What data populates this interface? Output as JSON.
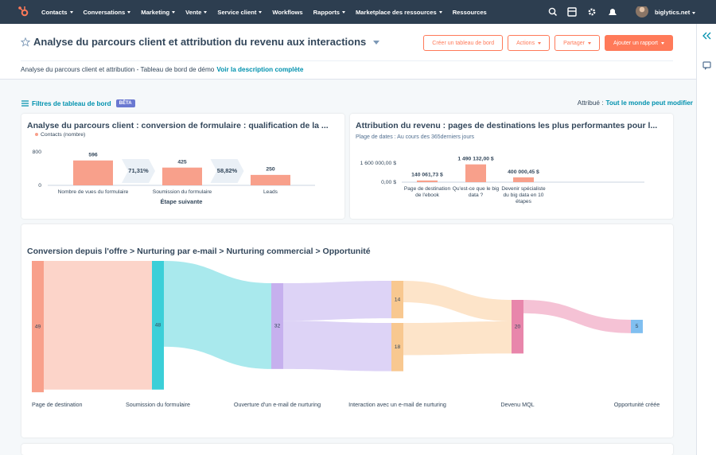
{
  "nav": {
    "items": [
      "Contacts",
      "Conversations",
      "Marketing",
      "Vente",
      "Service client",
      "Workflows",
      "Rapports",
      "Marketplace des ressources",
      "Ressources"
    ],
    "account": "biglytics.net"
  },
  "header": {
    "title": "Analyse du parcours client et attribution du revenu aux interactions",
    "buttons": [
      "Créer un tableau de bord",
      "Actions",
      "Partager",
      "Ajouter un rapport"
    ],
    "description": "Analyse du parcours client et attribution - Tableau de bord de démo",
    "description_link": "Voir la description complète"
  },
  "filters": {
    "label": "Filtres de tableau de bord",
    "badge": "BÊTA",
    "attribution_label": "Attribué :",
    "attribution_value": "Tout le monde peut modifier"
  },
  "chart_data": [
    {
      "type": "bar",
      "title": "Analyse du parcours client : conversion de formulaire : qualification de la ...",
      "categories": [
        "Nombre de vues du formulaire",
        "Soumission du formulaire",
        "Leads"
      ],
      "series": [
        {
          "name": "Contacts (nombre)",
          "color": "#f8a08b",
          "values": [
            596,
            425,
            250
          ]
        }
      ],
      "xlabel": "Étape suivante",
      "ylim": [
        0,
        800
      ],
      "yticks": [
        0,
        800
      ],
      "conversion_rates": {
        "values": [
          71.31,
          58.82
        ],
        "value_labels": [
          "71,31%",
          "58,82%"
        ]
      }
    },
    {
      "type": "bar",
      "title": "Attribution du revenu : pages de destinations les plus performantes pour l...",
      "subtitle": "Plage de dates : Au cours des 365derniers jours",
      "categories": [
        "Page de destination de l'ebook",
        "Qu'est-ce que le big data ?",
        "Devenir spécialiste du big data en 10 étapes"
      ],
      "values": [
        140061.73,
        1490132.0,
        400000.45
      ],
      "value_labels": [
        "140 061,73 $",
        "1 490 132,00 $",
        "400 000,45 $"
      ],
      "color": "#f8a08b",
      "ylim": [
        0,
        1600000
      ],
      "yticks": [
        {
          "value": 0,
          "label": "0,00 $"
        },
        {
          "value": 1600000,
          "label": "1 600 000,00 $"
        }
      ]
    },
    {
      "type": "sankey",
      "title": "Conversion depuis l'offre > Nurturing par e-mail > Nurturing commercial > Opportunité",
      "columns": [
        {
          "name": "Page de destination",
          "nodes": [
            {
              "value": 49,
              "color": "#f8a08b",
              "flow_color": "#fcd4c9",
              "flows": [
                48
              ]
            }
          ]
        },
        {
          "name": "Soumission du formulaire",
          "nodes": [
            {
              "value": 48,
              "color": "#3ccfd8",
              "flow_color": "#a9e9ed",
              "flows": [
                32
              ]
            }
          ]
        },
        {
          "name": "Ouverture d'un e-mail de nurturing",
          "nodes": [
            {
              "value": 32,
              "color": "#c6b0ee",
              "flow_color": "#ddd3f6",
              "flows": [
                14,
                18
              ]
            }
          ]
        },
        {
          "name": "Interaction avec un e-mail de nurturing",
          "nodes": [
            {
              "value": 14,
              "color": "#f8c890",
              "flow_color": "#fde4c9",
              "flows": [
                8
              ]
            },
            {
              "value": 18,
              "color": "#f8c890",
              "flow_color": "#fde4c9",
              "flows": [
                12
              ]
            }
          ]
        },
        {
          "name": "Devenu MQL",
          "nodes": [
            {
              "value": 20,
              "color": "#e886ab",
              "flow_color": "#f5c2d5",
              "flows": [
                5
              ]
            }
          ]
        },
        {
          "name": "Opportunité créée",
          "nodes": [
            {
              "value": 5,
              "color": "#80bff0",
              "flow_color": "#cfe6f8",
              "flows": []
            }
          ]
        }
      ]
    }
  ]
}
